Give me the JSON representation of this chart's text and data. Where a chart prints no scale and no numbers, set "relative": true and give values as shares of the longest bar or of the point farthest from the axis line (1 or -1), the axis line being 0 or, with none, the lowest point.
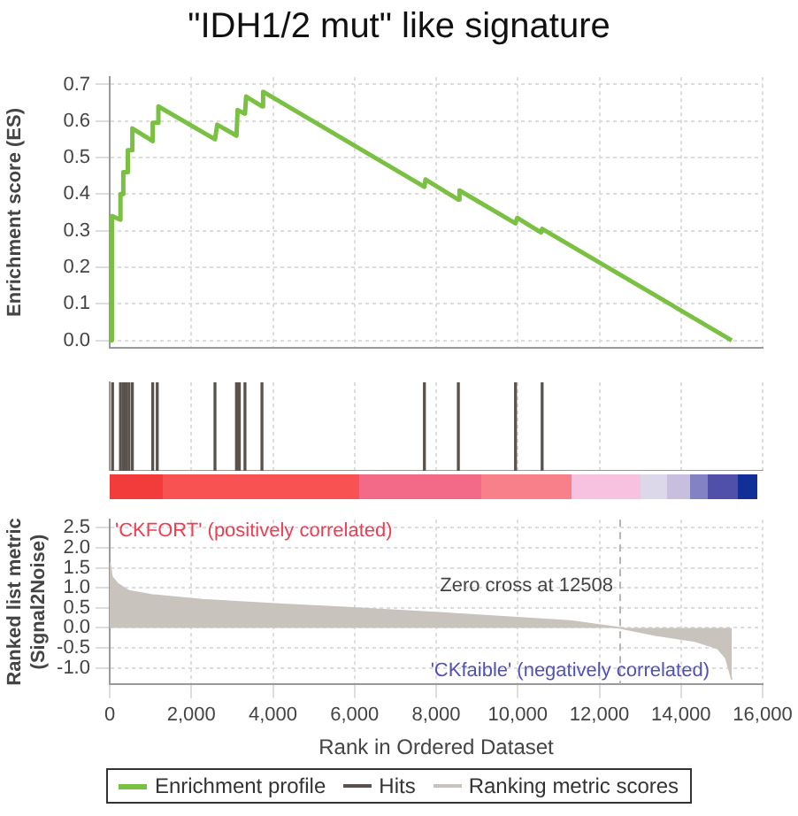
{
  "chart_data": [
    {
      "type": "line",
      "title": "\"IDH1/2 mut\" like signature",
      "ylabel": "Enrichment score (ES)",
      "series": [
        {
          "name": "Enrichment profile",
          "color": "#7ac143",
          "x": [
            0,
            55,
            55,
            264,
            264,
            333,
            333,
            444,
            444,
            527,
            555,
            1054,
            1054,
            1193,
            1193,
            2580,
            2635,
            3107,
            3135,
            3315,
            3343,
            3731,
            3759,
            7712,
            7740,
            8544,
            8572,
            9945,
            9987,
            10569,
            10597,
            15243
          ],
          "values": [
            0.0,
            0.0,
            0.34,
            0.33,
            0.4,
            0.4,
            0.46,
            0.46,
            0.52,
            0.52,
            0.58,
            0.545,
            0.595,
            0.595,
            0.64,
            0.55,
            0.59,
            0.56,
            0.63,
            0.62,
            0.667,
            0.64,
            0.68,
            0.42,
            0.44,
            0.385,
            0.41,
            0.32,
            0.335,
            0.295,
            0.305,
            0.0
          ]
        }
      ],
      "xlim": [
        0,
        16000
      ],
      "xticks": [
        0,
        2000,
        4000,
        6000,
        8000,
        10000,
        12000,
        14000,
        16000
      ],
      "ylim": [
        -0.02,
        0.72
      ],
      "yticks": [
        {
          "value": 0,
          "label": "0.0"
        },
        0.1,
        0.2,
        0.3,
        0.4,
        0.5,
        0.6,
        0.7
      ],
      "grid": true,
      "tick_labels": "y",
      "legend": "bottom"
    },
    {
      "type": "bar",
      "relative": true,
      "series": [
        {
          "name": "Hits",
          "color": "#5a524c",
          "x": [
            70,
            264,
            333,
            402,
            472,
            555,
            1054,
            1165,
            2580,
            3107,
            3176,
            3315,
            3731,
            7712,
            8544,
            9945,
            10597
          ],
          "values": [
            1,
            1,
            1,
            1,
            1,
            1,
            1,
            1,
            1,
            1,
            1,
            1,
            1,
            1,
            1,
            1,
            1
          ]
        }
      ],
      "xlim": [
        0,
        16000
      ],
      "xticks": [
        0,
        2000,
        4000,
        6000,
        8000,
        10000,
        12000,
        14000,
        16000
      ],
      "grid": "x",
      "tick_labels": false,
      "legend": "bottom"
    },
    {
      "type": "area",
      "xlabel": "Rank in Ordered Dataset",
      "ylabel": "Ranked list metric (Signal2Noise)",
      "series": [
        {
          "name": "Ranking metric scores",
          "color": "#c9c3bd",
          "x": [
            0,
            55,
            194,
            472,
            1026,
            2275,
            4355,
            5880,
            7960,
            9900,
            11290,
            12508,
            13370,
            14340,
            14900,
            15100,
            15215,
            15243
          ],
          "values": [
            1.63,
            1.27,
            1.1,
            0.92,
            0.82,
            0.7,
            0.58,
            0.5,
            0.38,
            0.26,
            0.17,
            0.0,
            -0.18,
            -0.33,
            -0.51,
            -0.75,
            -1.17,
            -1.29
          ]
        }
      ],
      "xlim": [
        0,
        16000
      ],
      "xticks": [
        0,
        {
          "value": 2000,
          "label": "2,000"
        },
        {
          "value": 4000,
          "label": "4,000"
        },
        {
          "value": 6000,
          "label": "6,000"
        },
        {
          "value": 8000,
          "label": "8,000"
        },
        {
          "value": 10000,
          "label": "10,000"
        },
        {
          "value": 12000,
          "label": "12,000"
        },
        {
          "value": 14000,
          "label": "14,000"
        },
        {
          "value": 16000,
          "label": "16,000"
        }
      ],
      "ylim": [
        -1.4,
        2.7
      ],
      "yticks": [
        {
          "value": -1,
          "label": "-1.0"
        },
        -0.5,
        {
          "value": 0,
          "label": "0.0"
        },
        0.5,
        {
          "value": 1,
          "label": "1.0"
        },
        1.5,
        {
          "value": 2,
          "label": "2.0"
        },
        2.5
      ],
      "ref_lines": [
        {
          "axis": "x",
          "value": 12508,
          "label": "Zero cross at 12508",
          "color": "#b4b4b4",
          "line_style": "dashed"
        }
      ],
      "annotations": [
        "'CKFORT' (positively correlated)",
        "'CKfaible' (negatively correlated)"
      ],
      "grid": true,
      "legend": "bottom"
    }
  ]
}
